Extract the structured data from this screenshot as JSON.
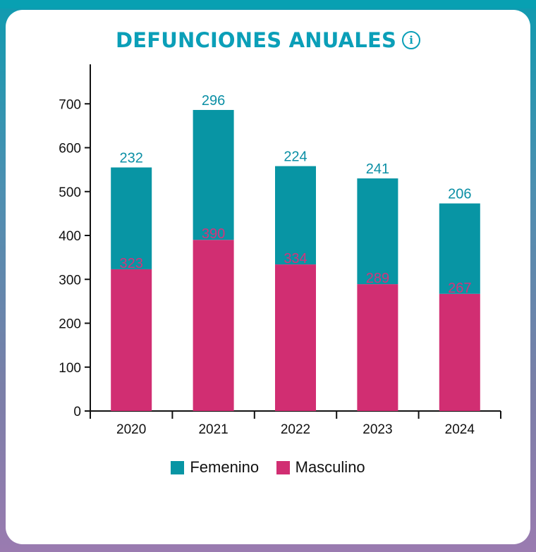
{
  "header": {
    "title": "DEFUNCIONES ANUALES",
    "info_icon": "info-icon"
  },
  "colors": {
    "femenino": "#0895a4",
    "masculino": "#d12e72",
    "title": "#0b9fb8"
  },
  "legend": [
    {
      "label": "Femenino",
      "color": "#0895a4"
    },
    {
      "label": "Masculino",
      "color": "#d12e72"
    }
  ],
  "chart_data": {
    "type": "bar",
    "stacked": true,
    "title": "DEFUNCIONES ANUALES",
    "categories": [
      "2020",
      "2021",
      "2022",
      "2023",
      "2024"
    ],
    "series": [
      {
        "name": "Masculino",
        "values": [
          323,
          390,
          334,
          289,
          267
        ]
      },
      {
        "name": "Femenino",
        "values": [
          232,
          296,
          224,
          241,
          206
        ]
      }
    ],
    "ylim": [
      0,
      790
    ],
    "yticks": [
      0,
      100,
      200,
      300,
      400,
      500,
      600,
      700
    ],
    "xlabel": "",
    "ylabel": "",
    "grid": false,
    "legend_position": "bottom"
  }
}
